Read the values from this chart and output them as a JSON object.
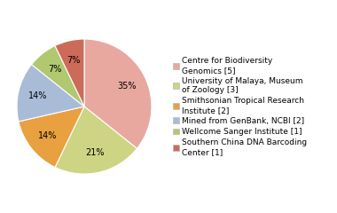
{
  "labels": [
    "Centre for Biodiversity\nGenomics [5]",
    "University of Malaya, Museum\nof Zoology [3]",
    "Smithsonian Tropical Research\nInstitute [2]",
    "Mined from GenBank, NCBI [2]",
    "Wellcome Sanger Institute [1]",
    "Southern China DNA Barcoding\nCenter [1]"
  ],
  "values": [
    35,
    21,
    14,
    14,
    7,
    7
  ],
  "colors": [
    "#e8a8a0",
    "#cdd484",
    "#e8a040",
    "#a8bcd8",
    "#b0c870",
    "#cc6b5a"
  ],
  "autopct_fontsize": 7,
  "legend_fontsize": 6.5,
  "figsize": [
    3.8,
    2.4
  ],
  "dpi": 100,
  "startangle": 90
}
